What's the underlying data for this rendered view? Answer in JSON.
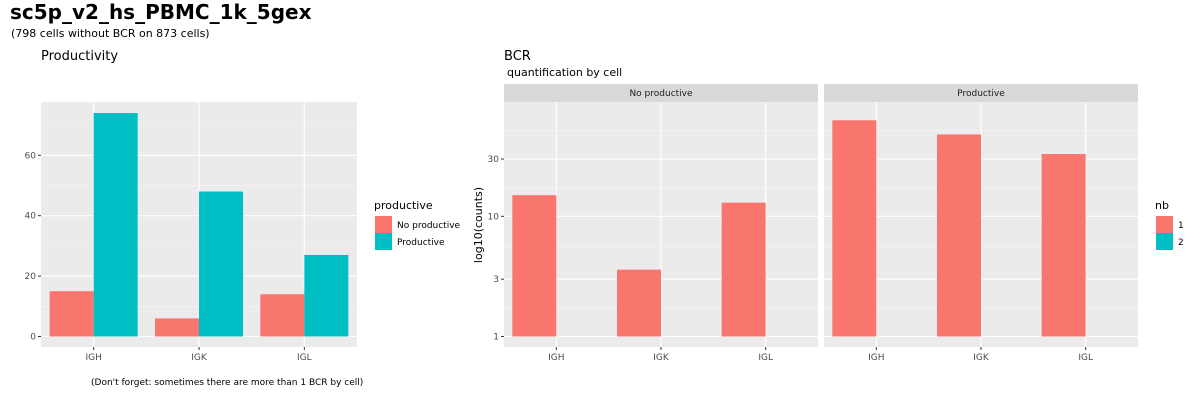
{
  "page": {
    "title": "sc5p_v2_hs_PBMC_1k_5gex",
    "subtitle": "(798 cells without BCR on 873 cells)",
    "footnote": "(Don't forget: sometimes there are more than 1  BCR  by cell)"
  },
  "chart_data": [
    {
      "type": "bar",
      "title": "Productivity",
      "xlabel": "",
      "ylabel": "",
      "categories": [
        "IGH",
        "IGK",
        "IGL"
      ],
      "series": [
        {
          "name": "No productive",
          "color": "#F8766D",
          "values": [
            15,
            6,
            14
          ]
        },
        {
          "name": "Productive",
          "color": "#00BFC4",
          "values": [
            74,
            48,
            27
          ]
        }
      ],
      "ylim": [
        0,
        77
      ],
      "yticks": [
        0,
        20,
        40,
        60
      ],
      "legend": {
        "title": "productive",
        "position": "right",
        "labels": [
          "No productive",
          "Productive"
        ]
      },
      "grid": true
    },
    {
      "type": "bar",
      "title": "BCR",
      "subtitle": "quantification by cell",
      "xlabel": "",
      "ylabel": "log10(counts)",
      "yscale": "log10",
      "yticks": [
        1,
        3,
        10,
        30
      ],
      "ylim": [
        0.9,
        80
      ],
      "categories": [
        "IGH",
        "IGK",
        "IGL"
      ],
      "facets": [
        {
          "label": "No productive",
          "series": [
            {
              "name": "1",
              "color": "#F8766D",
              "values": [
                15,
                3.6,
                13
              ]
            },
            {
              "name": "2",
              "color": "#00BFC4",
              "values": [
                null,
                null,
                null
              ]
            }
          ]
        },
        {
          "label": "Productive",
          "series": [
            {
              "name": "1",
              "color": "#F8766D",
              "values": [
                63,
                48,
                33
              ]
            },
            {
              "name": "2",
              "color": "#00BFC4",
              "values": [
                null,
                null,
                null
              ]
            }
          ]
        }
      ],
      "legend": {
        "title": "nb",
        "position": "right",
        "labels": [
          "1",
          "2"
        ]
      },
      "grid": true
    }
  ]
}
